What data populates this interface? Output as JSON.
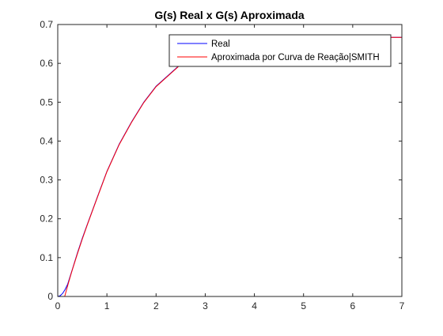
{
  "chart_data": {
    "type": "line",
    "title": "G(s) Real x G(s) Aproximada",
    "xlabel": "",
    "ylabel": "",
    "xlim": [
      0,
      7
    ],
    "ylim": [
      0,
      0.7
    ],
    "xticks": [
      0,
      1,
      2,
      3,
      4,
      5,
      6,
      7
    ],
    "yticks": [
      0,
      0.1,
      0.2,
      0.3,
      0.4,
      0.5,
      0.6,
      0.7
    ],
    "grid": false,
    "legend": {
      "placement": "top-right"
    },
    "series": [
      {
        "name": "Real",
        "color": "#0000ff",
        "x": [
          0,
          0.05,
          0.1,
          0.15,
          0.2,
          0.3,
          0.4,
          0.5,
          0.6,
          0.8,
          1.0,
          1.25,
          1.5,
          1.75,
          2.0,
          2.5,
          3.0,
          3.5,
          4.0,
          4.5,
          5.0,
          5.5,
          6.0,
          6.5,
          7.0
        ],
        "y": [
          0,
          0.002,
          0.008,
          0.018,
          0.031,
          0.071,
          0.112,
          0.15,
          0.185,
          0.254,
          0.322,
          0.392,
          0.449,
          0.5,
          0.541,
          0.598,
          0.632,
          0.65,
          0.659,
          0.664,
          0.666,
          0.667,
          0.667,
          0.667,
          0.667
        ]
      },
      {
        "name": "Aproximada por Curva de Reação|SMITH",
        "color": "#ff0000",
        "x": [
          0,
          0.14,
          0.15,
          0.2,
          0.25,
          0.3,
          0.4,
          0.5,
          0.6,
          0.8,
          1.0,
          1.25,
          1.5,
          1.75,
          2.0,
          2.5,
          3.0,
          3.5,
          4.0,
          4.5,
          5.0,
          5.5,
          6.0,
          6.5,
          7.0
        ],
        "y": [
          0,
          0,
          0.004,
          0.027,
          0.049,
          0.07,
          0.11,
          0.148,
          0.184,
          0.253,
          0.321,
          0.391,
          0.448,
          0.499,
          0.54,
          0.597,
          0.631,
          0.65,
          0.659,
          0.664,
          0.666,
          0.667,
          0.667,
          0.667,
          0.667
        ]
      }
    ]
  }
}
